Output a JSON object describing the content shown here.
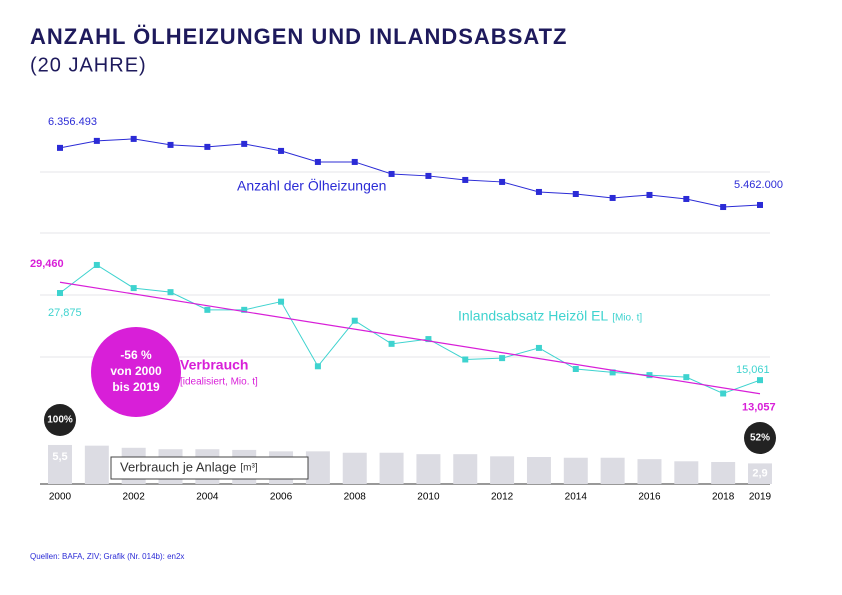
{
  "chart_data": {
    "type": "line",
    "title": "ANZAHL ÖLHEIZUNGEN UND INLANDSABSATZ",
    "subtitle": "(20 JAHRE)",
    "source": "Quellen: BAFA, ZIV; Grafik (Nr. 014b): en2x",
    "categories": [
      "2000",
      null,
      "2002",
      null,
      "2004",
      null,
      "2006",
      null,
      "2008",
      null,
      "2010",
      null,
      "2012",
      null,
      "2014",
      null,
      "2016",
      null,
      "2018",
      "2019"
    ],
    "ylim": [
      5070000,
      6950000
    ],
    "y2lim": [
      9.2,
      34.2
    ],
    "y3lim": [
      0,
      8
    ],
    "series": [
      {
        "name": "Anzahl der Ölheizungen",
        "color": "#2b2bd6",
        "axis": "y",
        "values": [
          6356493,
          6466000,
          6497000,
          6403000,
          6372000,
          6419000,
          6309000,
          6136000,
          6136000,
          5948000,
          5917000,
          5854000,
          5823000,
          5666000,
          5634000,
          5572000,
          5619000,
          5556000,
          5430000,
          5462000
        ],
        "value_labels": [
          "6.356.493",
          null,
          null,
          null,
          null,
          null,
          null,
          null,
          null,
          null,
          null,
          null,
          null,
          null,
          null,
          null,
          null,
          null,
          null,
          "5.462.000"
        ]
      },
      {
        "name": "Inlandsabsatz Heizöl EL",
        "unit": "[Mio. t]",
        "color": "#3ed3cf",
        "axis": "y2",
        "values": [
          27.875,
          32.0,
          28.6,
          28.0,
          25.4,
          25.4,
          26.6,
          17.1,
          23.8,
          20.4,
          21.1,
          18.1,
          18.3,
          19.8,
          16.7,
          16.2,
          15.8,
          15.5,
          13.1,
          15.061
        ],
        "value_labels": [
          "27,875",
          null,
          null,
          null,
          null,
          null,
          null,
          null,
          null,
          null,
          null,
          null,
          null,
          null,
          null,
          null,
          null,
          null,
          null,
          "15,061"
        ]
      },
      {
        "name": "Verbrauch",
        "unit": "[idealisiert, Mio. t]",
        "color": "#d81fd8",
        "axis": "y2",
        "x": [
          "2000",
          "2019"
        ],
        "values": [
          29.46,
          13.057
        ],
        "value_labels": [
          "29,460",
          "13,057"
        ]
      },
      {
        "name": "Verbrauch je Anlage",
        "unit": "[m³]",
        "type": "bar",
        "color": "#dcdce3",
        "axis": "y3",
        "values": [
          5.5,
          5.4,
          5.1,
          4.9,
          4.9,
          4.8,
          4.6,
          4.6,
          4.4,
          4.4,
          4.2,
          4.2,
          3.9,
          3.8,
          3.7,
          3.7,
          3.5,
          3.2,
          3.1,
          2.9
        ],
        "value_labels": [
          "5,5",
          null,
          null,
          null,
          null,
          null,
          null,
          null,
          null,
          null,
          null,
          null,
          null,
          null,
          null,
          null,
          null,
          null,
          null,
          "2,9"
        ]
      }
    ],
    "badge": [
      "-56 %",
      "von 2000",
      "bis 2019"
    ],
    "start_share": "100%",
    "end_share": "52%"
  }
}
